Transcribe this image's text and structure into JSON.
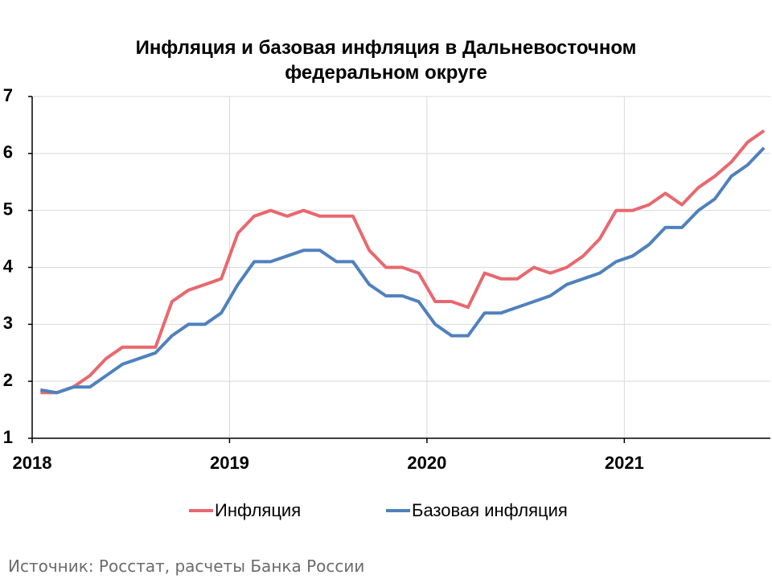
{
  "chart_data": {
    "type": "line",
    "title": "Инфляция и базовая инфляция в Дальневосточном федеральном округе",
    "source": "Источник: Росстат, расчеты Банка России",
    "x": [
      2018.042,
      2018.125,
      2018.208,
      2018.292,
      2018.375,
      2018.458,
      2018.542,
      2018.625,
      2018.708,
      2018.792,
      2018.875,
      2018.958,
      2019.042,
      2019.125,
      2019.208,
      2019.292,
      2019.375,
      2019.458,
      2019.542,
      2019.625,
      2019.708,
      2019.792,
      2019.875,
      2019.958,
      2020.042,
      2020.125,
      2020.208,
      2020.292,
      2020.375,
      2020.458,
      2020.542,
      2020.625,
      2020.708,
      2020.792,
      2020.875,
      2020.958,
      2021.042,
      2021.125,
      2021.208,
      2021.292,
      2021.375,
      2021.458,
      2021.542,
      2021.625,
      2021.708
    ],
    "series": [
      {
        "name": "Инфляция",
        "color": "#e8686e",
        "values": [
          1.8,
          1.8,
          1.9,
          2.1,
          2.4,
          2.6,
          2.6,
          2.6,
          3.4,
          3.6,
          3.7,
          3.8,
          4.6,
          4.9,
          5.0,
          4.9,
          5.0,
          4.9,
          4.9,
          4.9,
          4.3,
          4.0,
          4.0,
          3.9,
          3.4,
          3.4,
          3.3,
          3.9,
          3.8,
          3.8,
          4.0,
          3.9,
          4.0,
          4.2,
          4.5,
          5.0,
          5.0,
          5.1,
          5.3,
          5.1,
          5.4,
          5.6,
          5.85,
          6.2,
          6.4
        ]
      },
      {
        "name": "Базовая инфляция",
        "color": "#4f81bd",
        "values": [
          1.85,
          1.8,
          1.9,
          1.9,
          2.1,
          2.3,
          2.4,
          2.5,
          2.8,
          3.0,
          3.0,
          3.2,
          3.7,
          4.1,
          4.1,
          4.2,
          4.3,
          4.3,
          4.1,
          4.1,
          3.7,
          3.5,
          3.5,
          3.4,
          3.0,
          2.8,
          2.8,
          3.2,
          3.2,
          3.3,
          3.4,
          3.5,
          3.7,
          3.8,
          3.9,
          4.1,
          4.2,
          4.4,
          4.7,
          4.7,
          5.0,
          5.2,
          5.6,
          5.8,
          6.1
        ]
      }
    ],
    "xlim": [
      2018,
      2021.74
    ],
    "xticks": [
      2018,
      2019,
      2020,
      2021
    ],
    "ylim": [
      1,
      7
    ],
    "yticks": [
      1,
      2,
      3,
      4,
      5,
      6,
      7
    ],
    "grid": true,
    "legend": "bottom"
  }
}
